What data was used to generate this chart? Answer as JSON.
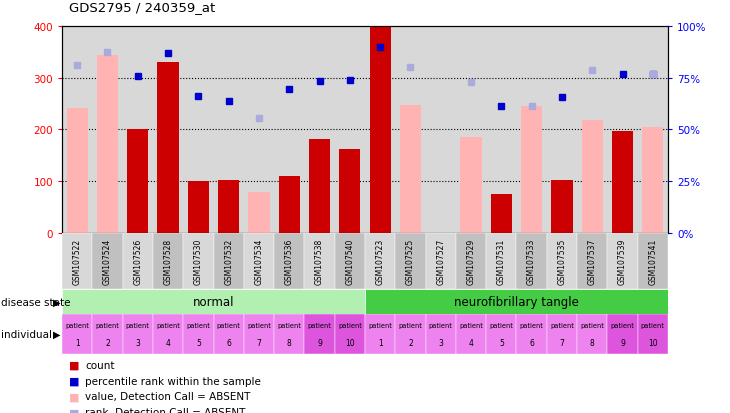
{
  "title": "GDS2795 / 240359_at",
  "samples": [
    "GSM107522",
    "GSM107524",
    "GSM107526",
    "GSM107528",
    "GSM107530",
    "GSM107532",
    "GSM107534",
    "GSM107536",
    "GSM107538",
    "GSM107540",
    "GSM107523",
    "GSM107525",
    "GSM107527",
    "GSM107529",
    "GSM107531",
    "GSM107533",
    "GSM107535",
    "GSM107537",
    "GSM107539",
    "GSM107541"
  ],
  "count_values": [
    null,
    null,
    200,
    330,
    100,
    103,
    null,
    110,
    182,
    163,
    398,
    null,
    null,
    null,
    75,
    null,
    103,
    null,
    197,
    null
  ],
  "count_absent": [
    242,
    343,
    null,
    null,
    null,
    null,
    80,
    null,
    null,
    null,
    null,
    248,
    null,
    185,
    null,
    245,
    null,
    218,
    null,
    204
  ],
  "rank_present": [
    null,
    null,
    304,
    348,
    265,
    254,
    null,
    278,
    293,
    295,
    360,
    null,
    null,
    null,
    245,
    null,
    262,
    null,
    308,
    308
  ],
  "rank_absent": [
    325,
    350,
    null,
    null,
    null,
    null,
    222,
    null,
    null,
    null,
    null,
    320,
    null,
    292,
    null,
    245,
    null,
    315,
    null,
    308
  ],
  "patient_indices": [
    1,
    2,
    3,
    4,
    5,
    6,
    7,
    8,
    9,
    10,
    1,
    2,
    3,
    4,
    5,
    6,
    7,
    8,
    9,
    10
  ],
  "ylim_left": [
    0,
    400
  ],
  "ylim_right": [
    0,
    100
  ],
  "yticks_left": [
    0,
    100,
    200,
    300,
    400
  ],
  "yticks_right": [
    0,
    25,
    50,
    75,
    100
  ],
  "ytick_labels_right": [
    "0%",
    "25%",
    "50%",
    "75%",
    "100%"
  ],
  "bar_color_present": "#cc0000",
  "bar_color_absent": "#ffb3b3",
  "dot_color_present": "#0000cc",
  "dot_color_absent": "#aaaadd",
  "normal_color_light": "#b2f0b2",
  "normal_color_dark": "#7de87d",
  "tangle_color_light": "#7de87d",
  "tangle_color_dark": "#44cc44",
  "individual_color_light": "#ee82ee",
  "individual_color_dark": "#dd55dd",
  "axis_bg": "#d8d8d8",
  "xtick_bg_light": "#d8d8d8",
  "xtick_bg_dark": "#c0c0c0",
  "bg_color": "#ffffff",
  "grid_color": "#000000"
}
